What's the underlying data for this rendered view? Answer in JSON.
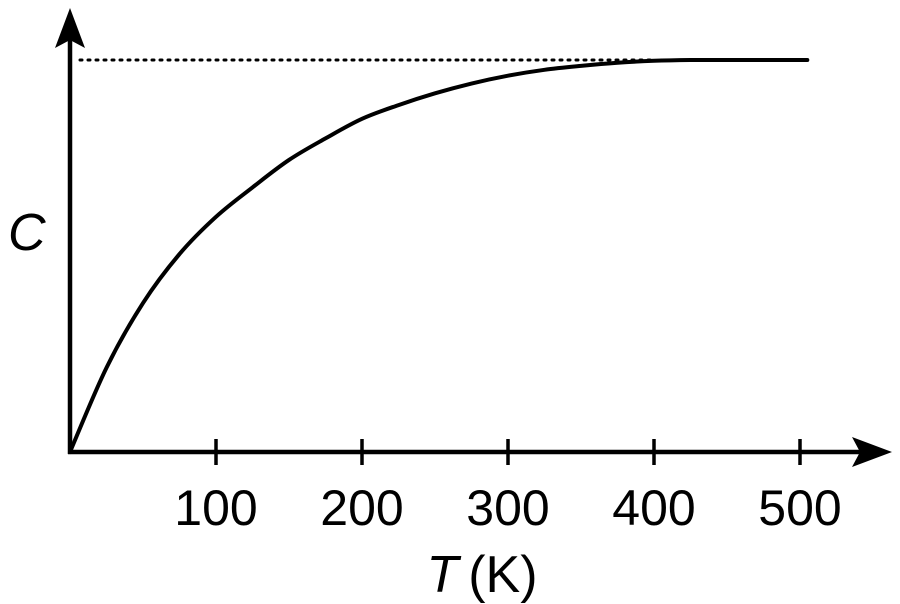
{
  "chart_data": {
    "type": "line",
    "title": "",
    "xlabel_symbol": "T",
    "xlabel_unit": "(K)",
    "ylabel": "C",
    "xlim": [
      0,
      560
    ],
    "ylim": [
      0,
      1.1
    ],
    "xticks": [
      100,
      200,
      300,
      400,
      500
    ],
    "xtick_labels": [
      "100",
      "200",
      "300",
      "400",
      "500"
    ],
    "yticks": [],
    "grid": false,
    "asymptote": {
      "y": 1.0,
      "style": "dotted",
      "x_from": 0,
      "x_to": 400
    },
    "series": [
      {
        "x": [
          0,
          25,
          50,
          75,
          100,
          125,
          150,
          175,
          200,
          225,
          250,
          275,
          300,
          325,
          350,
          375,
          400,
          425,
          450,
          475,
          505
        ],
        "y": [
          0,
          0.215,
          0.38,
          0.505,
          0.6,
          0.675,
          0.745,
          0.8,
          0.85,
          0.885,
          0.915,
          0.94,
          0.96,
          0.975,
          0.985,
          0.993,
          0.998,
          1.0,
          1.0,
          1.0,
          1.0
        ]
      }
    ]
  }
}
